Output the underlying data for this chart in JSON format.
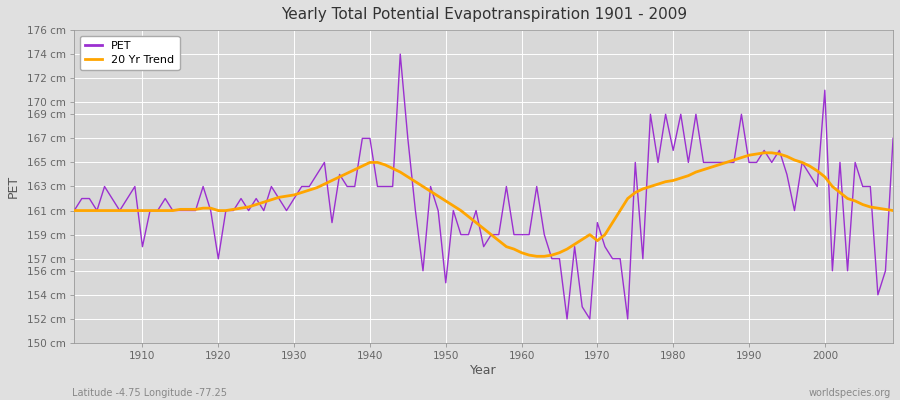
{
  "title": "Yearly Total Potential Evapotranspiration 1901 - 2009",
  "xlabel": "Year",
  "ylabel": "PET",
  "subtitle_left": "Latitude -4.75 Longitude -77.25",
  "subtitle_right": "worldspecies.org",
  "ylim": [
    150,
    176
  ],
  "xlim": [
    1901,
    2009
  ],
  "yticks": [
    150,
    152,
    154,
    156,
    157,
    159,
    161,
    163,
    165,
    167,
    169,
    170,
    172,
    174,
    176
  ],
  "xticks": [
    1910,
    1920,
    1930,
    1940,
    1950,
    1960,
    1970,
    1980,
    1990,
    2000
  ],
  "pet_color": "#9b30d0",
  "trend_color": "#ffa500",
  "bg_color": "#e0e0e0",
  "plot_bg_color": "#d8d8d8",
  "grid_color": "#ffffff",
  "pet_years": [
    1901,
    1902,
    1903,
    1904,
    1905,
    1906,
    1907,
    1908,
    1909,
    1910,
    1911,
    1912,
    1913,
    1914,
    1915,
    1916,
    1917,
    1918,
    1919,
    1920,
    1921,
    1922,
    1923,
    1924,
    1925,
    1926,
    1927,
    1928,
    1929,
    1930,
    1931,
    1932,
    1933,
    1934,
    1935,
    1936,
    1937,
    1938,
    1939,
    1940,
    1941,
    1942,
    1943,
    1944,
    1945,
    1946,
    1947,
    1948,
    1949,
    1950,
    1951,
    1952,
    1953,
    1954,
    1955,
    1956,
    1957,
    1958,
    1959,
    1960,
    1961,
    1962,
    1963,
    1964,
    1965,
    1966,
    1967,
    1968,
    1969,
    1970,
    1971,
    1972,
    1973,
    1974,
    1975,
    1976,
    1977,
    1978,
    1979,
    1980,
    1981,
    1982,
    1983,
    1984,
    1985,
    1986,
    1987,
    1988,
    1989,
    1990,
    1991,
    1992,
    1993,
    1994,
    1995,
    1996,
    1997,
    1998,
    1999,
    2000,
    2001,
    2002,
    2003,
    2004,
    2005,
    2006,
    2007,
    2008,
    2009
  ],
  "pet_values": [
    161,
    162,
    162,
    161,
    163,
    162,
    161,
    162,
    163,
    158,
    161,
    161,
    162,
    161,
    161,
    161,
    161,
    163,
    161,
    157,
    161,
    161,
    162,
    161,
    162,
    161,
    163,
    162,
    161,
    162,
    163,
    163,
    164,
    165,
    160,
    164,
    163,
    163,
    167,
    167,
    163,
    163,
    163,
    174,
    167,
    161,
    156,
    163,
    161,
    155,
    161,
    159,
    159,
    161,
    158,
    159,
    159,
    163,
    159,
    159,
    159,
    163,
    159,
    157,
    157,
    152,
    158,
    153,
    152,
    160,
    158,
    157,
    157,
    152,
    165,
    157,
    169,
    165,
    169,
    166,
    169,
    165,
    169,
    165,
    165,
    165,
    165,
    165,
    169,
    165,
    165,
    166,
    165,
    166,
    164,
    161,
    165,
    164,
    163,
    171,
    156,
    165,
    156,
    165,
    163,
    163,
    154,
    156,
    167
  ],
  "trend_years": [
    1901,
    1902,
    1903,
    1904,
    1905,
    1906,
    1907,
    1908,
    1909,
    1910,
    1911,
    1912,
    1913,
    1914,
    1915,
    1916,
    1917,
    1918,
    1919,
    1920,
    1921,
    1922,
    1923,
    1924,
    1925,
    1926,
    1927,
    1928,
    1929,
    1930,
    1931,
    1932,
    1933,
    1934,
    1935,
    1936,
    1937,
    1938,
    1939,
    1940,
    1941,
    1942,
    1943,
    1944,
    1945,
    1946,
    1947,
    1948,
    1949,
    1950,
    1951,
    1952,
    1953,
    1954,
    1955,
    1956,
    1957,
    1958,
    1959,
    1960,
    1961,
    1962,
    1963,
    1964,
    1965,
    1966,
    1967,
    1968,
    1969,
    1970,
    1971,
    1972,
    1973,
    1974,
    1975,
    1976,
    1977,
    1978,
    1979,
    1980,
    1981,
    1982,
    1983,
    1984,
    1985,
    1986,
    1987,
    1988,
    1989,
    1990,
    1991,
    1992,
    1993,
    1994,
    1995,
    1996,
    1997,
    1998,
    1999,
    2000,
    2001,
    2002,
    2003,
    2004,
    2005,
    2006,
    2007,
    2008,
    2009
  ],
  "trend_values": [
    161.0,
    161.0,
    161.0,
    161.0,
    161.0,
    161.0,
    161.0,
    161.0,
    161.0,
    161.0,
    161.0,
    161.0,
    161.0,
    161.0,
    161.1,
    161.1,
    161.1,
    161.2,
    161.2,
    161.0,
    161.0,
    161.1,
    161.2,
    161.3,
    161.5,
    161.7,
    161.9,
    162.1,
    162.2,
    162.3,
    162.5,
    162.7,
    162.9,
    163.2,
    163.5,
    163.8,
    164.1,
    164.4,
    164.7,
    165.0,
    165.0,
    164.8,
    164.5,
    164.2,
    163.8,
    163.4,
    163.0,
    162.6,
    162.2,
    161.8,
    161.4,
    161.0,
    160.5,
    160.0,
    159.5,
    159.0,
    158.5,
    158.0,
    157.8,
    157.5,
    157.3,
    157.2,
    157.2,
    157.3,
    157.5,
    157.8,
    158.2,
    158.6,
    159.0,
    158.5,
    159.0,
    160.0,
    161.0,
    162.0,
    162.5,
    162.8,
    163.0,
    163.2,
    163.4,
    163.5,
    163.7,
    163.9,
    164.2,
    164.4,
    164.6,
    164.8,
    165.0,
    165.2,
    165.4,
    165.6,
    165.7,
    165.8,
    165.8,
    165.7,
    165.5,
    165.2,
    165.0,
    164.7,
    164.3,
    163.8,
    163.0,
    162.5,
    162.0,
    161.8,
    161.5,
    161.3,
    161.2,
    161.1,
    161.0
  ]
}
